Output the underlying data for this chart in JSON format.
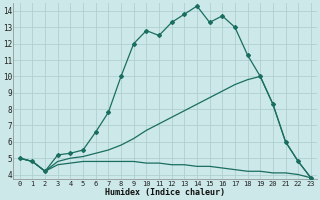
{
  "xlabel": "Humidex (Indice chaleur)",
  "x_ticks": [
    0,
    1,
    2,
    3,
    4,
    5,
    6,
    7,
    8,
    9,
    10,
    11,
    12,
    13,
    14,
    15,
    16,
    17,
    18,
    19,
    20,
    21,
    22,
    23
  ],
  "xlim": [
    -0.5,
    23.5
  ],
  "ylim": [
    3.7,
    14.5
  ],
  "y_ticks": [
    4,
    5,
    6,
    7,
    8,
    9,
    10,
    11,
    12,
    13,
    14
  ],
  "bg_color": "#cce8e8",
  "grid_color": "#b0d0d0",
  "line_color": "#1a6e60",
  "series": [
    {
      "x": [
        0,
        1,
        2,
        3,
        4,
        5,
        6,
        7,
        8,
        9,
        10,
        11,
        12,
        13,
        14,
        15,
        16,
        17,
        18,
        19,
        20,
        21,
        22,
        23
      ],
      "y": [
        5.0,
        4.8,
        4.2,
        5.2,
        5.3,
        5.5,
        6.6,
        7.8,
        10.0,
        12.0,
        12.8,
        12.5,
        13.3,
        13.8,
        14.3,
        13.3,
        13.7,
        13.0,
        11.3,
        10.0,
        8.3,
        6.0,
        4.8,
        3.8
      ],
      "marker": true
    },
    {
      "x": [
        0,
        1,
        2,
        3,
        4,
        5,
        6,
        7,
        8,
        9,
        10,
        11,
        12,
        13,
        14,
        15,
        16,
        17,
        18,
        19,
        20,
        21,
        22,
        23
      ],
      "y": [
        5.0,
        4.8,
        4.2,
        4.8,
        5.0,
        5.1,
        5.3,
        5.5,
        5.8,
        6.2,
        6.7,
        7.1,
        7.5,
        7.9,
        8.3,
        8.7,
        9.1,
        9.5,
        9.8,
        10.0,
        8.3,
        6.0,
        4.8,
        3.8
      ],
      "marker": false
    },
    {
      "x": [
        0,
        1,
        2,
        3,
        4,
        5,
        6,
        7,
        8,
        9,
        10,
        11,
        12,
        13,
        14,
        15,
        16,
        17,
        18,
        19,
        20,
        21,
        22,
        23
      ],
      "y": [
        5.0,
        4.8,
        4.2,
        4.6,
        4.7,
        4.8,
        4.8,
        4.8,
        4.8,
        4.8,
        4.7,
        4.7,
        4.6,
        4.6,
        4.5,
        4.5,
        4.4,
        4.3,
        4.2,
        4.2,
        4.1,
        4.1,
        4.0,
        3.8
      ],
      "marker": false
    }
  ]
}
